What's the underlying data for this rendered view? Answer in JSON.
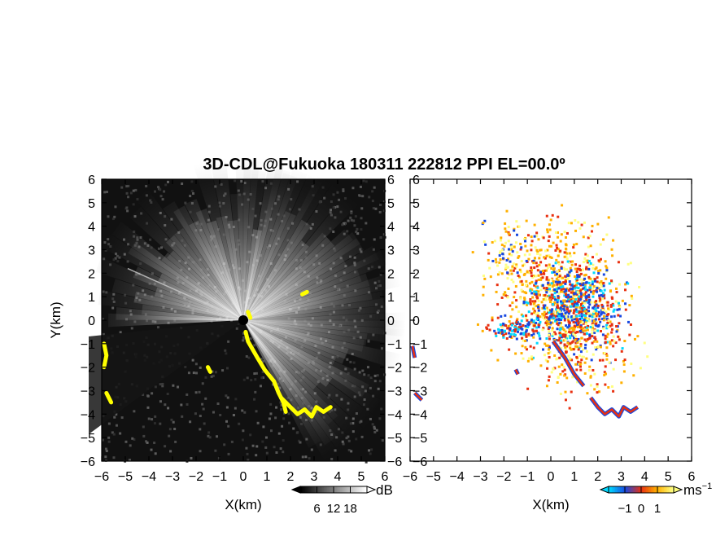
{
  "chart_data": {
    "title": "3D-CDL@Fukuoka 180311 222812 PPI EL=00.0º",
    "panels": [
      {
        "type": "heatmap",
        "quantity": "intensity",
        "xlabel": "X(km)",
        "ylabel": "Y(km)",
        "xlim": [
          -6,
          6
        ],
        "ylim": [
          -6,
          6
        ],
        "xticks": [
          "−6",
          "−5",
          "−4",
          "−3",
          "−2",
          "−1",
          "0",
          "1",
          "2",
          "3",
          "4",
          "5",
          "6"
        ],
        "yticks": [
          "−6",
          "−5",
          "−4",
          "−3",
          "−2",
          "−1",
          "0",
          "1",
          "2",
          "3",
          "4",
          "5",
          "6"
        ],
        "background_color": "#111111",
        "highlight_color": "#ffff00",
        "colorbar": {
          "unit": "dB",
          "range": [
            0,
            24
          ],
          "tick_values": [
            6,
            12,
            18
          ],
          "tick_labels": [
            "6",
            "12",
            "18"
          ],
          "colors": [
            "#000000",
            "#ffffff"
          ]
        }
      },
      {
        "type": "heatmap",
        "quantity": "radial velocity",
        "xlabel": "X(km)",
        "ylabel": "",
        "xlim": [
          -6,
          6
        ],
        "ylim": [
          -6,
          6
        ],
        "xticks": [
          "−6",
          "−5",
          "−4",
          "−3",
          "−2",
          "−1",
          "0",
          "1",
          "2",
          "3",
          "4",
          "5",
          "6"
        ],
        "yticks": [
          "−6",
          "−5",
          "−4",
          "−3",
          "−2",
          "−1",
          "0",
          "1",
          "2",
          "3",
          "4",
          "5",
          "6"
        ],
        "colorbar": {
          "unit": "ms",
          "unit_exponent": "−1",
          "range": [
            -2,
            2
          ],
          "tick_values": [
            -1,
            0,
            1
          ],
          "tick_labels": [
            "−1",
            "0",
            "1"
          ],
          "colors": [
            "#00d8ff",
            "#1848e0",
            "#e83010",
            "#ffb000",
            "#ffff80"
          ]
        }
      }
    ]
  }
}
